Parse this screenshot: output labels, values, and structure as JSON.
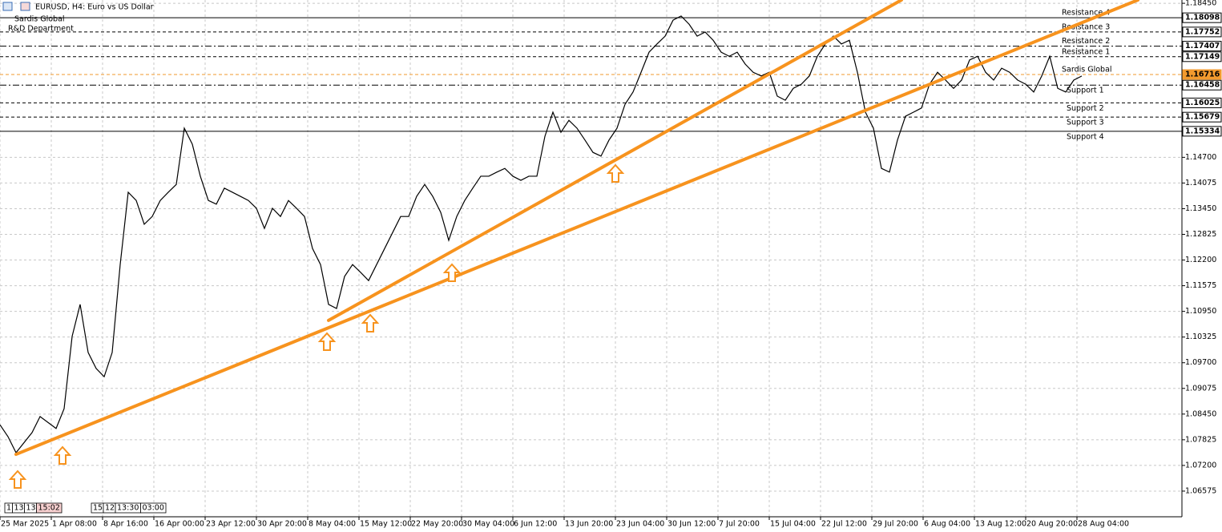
{
  "chart_data": {
    "type": "line",
    "title": "EURUSD, H4:  Euro vs US Dollar",
    "subtitle": [
      "Sardis Global",
      "R&D Department"
    ],
    "color": "#000000",
    "x": [
      0,
      5,
      10,
      20,
      25,
      35,
      40,
      45,
      50,
      55,
      60,
      65,
      70,
      75,
      80,
      85,
      90,
      95,
      100,
      105,
      110,
      115,
      120,
      125,
      130,
      135,
      140,
      145,
      150,
      155,
      160,
      165,
      170,
      175,
      180,
      185,
      190,
      195,
      200,
      205,
      210,
      215,
      220,
      225,
      230,
      235,
      240,
      245,
      250,
      255,
      260,
      265,
      270,
      275,
      280,
      285,
      290,
      295,
      300,
      305,
      310,
      315,
      320,
      325,
      330,
      335,
      340,
      345,
      350,
      355,
      360,
      365,
      370,
      375,
      380,
      385,
      390,
      395,
      400,
      405,
      410,
      415,
      420,
      425,
      430,
      435,
      440,
      445,
      450,
      455,
      460,
      465,
      470,
      475,
      480,
      485,
      490,
      495,
      500,
      505,
      510,
      515,
      520,
      525,
      530,
      535,
      540,
      545,
      550,
      555,
      560,
      565,
      570,
      575,
      580,
      585,
      590,
      595,
      600,
      605,
      610,
      615,
      620,
      625,
      630,
      635,
      640,
      645,
      650,
      655,
      660,
      665,
      670,
      675
    ],
    "values": [
      1.0819,
      1.079,
      1.0751,
      1.08,
      1.0839,
      1.081,
      1.0858,
      1.1034,
      1.1112,
      1.0995,
      1.0956,
      1.0936,
      1.0995,
      1.1209,
      1.1385,
      1.1365,
      1.1307,
      1.1326,
      1.1365,
      1.1385,
      1.1404,
      1.1541,
      1.1502,
      1.1424,
      1.1365,
      1.1356,
      1.1395,
      1.1385,
      1.1375,
      1.1365,
      1.1346,
      1.1297,
      1.1346,
      1.1326,
      1.1365,
      1.1346,
      1.1326,
      1.1248,
      1.1209,
      1.1112,
      1.1102,
      1.118,
      1.1209,
      1.119,
      1.117,
      1.1209,
      1.1248,
      1.1287,
      1.1326,
      1.1326,
      1.1375,
      1.1404,
      1.1375,
      1.1336,
      1.1268,
      1.1326,
      1.1365,
      1.1395,
      1.1424,
      1.1424,
      1.1434,
      1.1443,
      1.1424,
      1.1414,
      1.1424,
      1.1424,
      1.1521,
      1.158,
      1.1531,
      1.156,
      1.1541,
      1.1512,
      1.1482,
      1.1473,
      1.1512,
      1.1541,
      1.1599,
      1.1629,
      1.1677,
      1.1726,
      1.1746,
      1.1765,
      1.1804,
      1.1814,
      1.1794,
      1.1765,
      1.1775,
      1.1755,
      1.1726,
      1.1716,
      1.1726,
      1.1697,
      1.1677,
      1.1668,
      1.1677,
      1.1619,
      1.1609,
      1.1638,
      1.1648,
      1.1668,
      1.1716,
      1.1746,
      1.1765,
      1.1746,
      1.1755,
      1.1677,
      1.158,
      1.1541,
      1.1443,
      1.1434,
      1.1512,
      1.157,
      1.158,
      1.159,
      1.1648,
      1.1677,
      1.1658,
      1.1638,
      1.1658,
      1.1707,
      1.1716,
      1.1677,
      1.1658,
      1.1687,
      1.1677,
      1.1658,
      1.1648,
      1.1629,
      1.1668,
      1.1716,
      1.1638,
      1.1629,
      1.1658,
      1.1668
    ],
    "xlim": [
      0,
      737.5
    ],
    "ylim": [
      1.0595,
      1.1853
    ],
    "grid": true,
    "xticks": [
      {
        "value": 0,
        "label": "25 Mar 2025"
      },
      {
        "value": 32,
        "label": "1 Apr 08:00"
      },
      {
        "value": 64,
        "label": "8 Apr 16:00"
      },
      {
        "value": 96,
        "label": "16 Apr 00:00"
      },
      {
        "value": 128,
        "label": "23 Apr 12:00"
      },
      {
        "value": 160,
        "label": "30 Apr 20:00"
      },
      {
        "value": 192,
        "label": "8 May 04:00"
      },
      {
        "value": 224,
        "label": "15 May 12:00"
      },
      {
        "value": 256,
        "label": "22 May 20:00"
      },
      {
        "value": 288,
        "label": "30 May 04:00"
      },
      {
        "value": 320,
        "label": "6 Jun 12:00"
      },
      {
        "value": 352,
        "label": "13 Jun 20:00"
      },
      {
        "value": 384,
        "label": "23 Jun 04:00"
      },
      {
        "value": 416,
        "label": "30 Jun 12:00"
      },
      {
        "value": 448,
        "label": "7 Jul 20:00"
      },
      {
        "value": 480,
        "label": "15 Jul 04:00"
      },
      {
        "value": 512,
        "label": "22 Jul 12:00"
      },
      {
        "value": 544,
        "label": "29 Jul 20:00"
      },
      {
        "value": 576,
        "label": "6 Aug 04:00"
      },
      {
        "value": 608,
        "label": "13 Aug 12:00"
      },
      {
        "value": 640,
        "label": "20 Aug 20:00"
      },
      {
        "value": 672,
        "label": "28 Aug 04:00"
      }
    ],
    "yticks": [
      {
        "value": 1.1845,
        "label": "1.18450"
      },
      {
        "value": 1.147,
        "label": "1.14700"
      },
      {
        "value": 1.14075,
        "label": "1.14075"
      },
      {
        "value": 1.1345,
        "label": "1.13450"
      },
      {
        "value": 1.12825,
        "label": "1.12825"
      },
      {
        "value": 1.122,
        "label": "1.12200"
      },
      {
        "value": 1.11575,
        "label": "1.11575"
      },
      {
        "value": 1.1095,
        "label": "1.10950"
      },
      {
        "value": 1.10325,
        "label": "1.10325"
      },
      {
        "value": 1.097,
        "label": "1.09700"
      },
      {
        "value": 1.09075,
        "label": "1.09075"
      },
      {
        "value": 1.0845,
        "label": "1.08450"
      },
      {
        "value": 1.07825,
        "label": "1.07825"
      },
      {
        "value": 1.072,
        "label": "1.07200"
      },
      {
        "value": 1.06575,
        "label": "1.06575"
      }
    ],
    "levels": {
      "names": [
        "Resistance 4",
        "Resistance 3",
        "Resistance 2",
        "Resistance 1",
        "Sardis Global",
        "Support 1",
        "Support 2",
        "Support 3",
        "Support 4"
      ],
      "values": [
        1.18098,
        1.17752,
        1.17407,
        1.17149,
        1.16716,
        1.16458,
        1.16025,
        1.15679,
        1.15334
      ],
      "value_labels": [
        "1.18098",
        "1.17752",
        "1.17407",
        "1.17149",
        "1.16716",
        "1.16458",
        "1.16025",
        "1.15679",
        "1.15334"
      ],
      "styles": [
        "solid",
        "dashed",
        "dashdot",
        "dashed",
        "dashed",
        "dashdot",
        "dashed",
        "dashed",
        "solid"
      ],
      "colors": [
        "#000000",
        "#000000",
        "#000000",
        "#000000",
        "#f29a2e",
        "#000000",
        "#000000",
        "#000000",
        "#000000"
      ]
    },
    "trendlines": [
      {
        "x": [
          10,
          710
        ],
        "y": [
          1.0747,
          1.1853
        ]
      },
      {
        "x": [
          205,
          562.5
        ],
        "y": [
          1.1073,
          1.1853
        ]
      }
    ],
    "trendline_color": "#f7931e",
    "time_markers": [
      [
        "1",
        "13",
        "13",
        "15:02"
      ],
      [
        "15",
        "12",
        "13:30",
        "03:00"
      ]
    ]
  }
}
